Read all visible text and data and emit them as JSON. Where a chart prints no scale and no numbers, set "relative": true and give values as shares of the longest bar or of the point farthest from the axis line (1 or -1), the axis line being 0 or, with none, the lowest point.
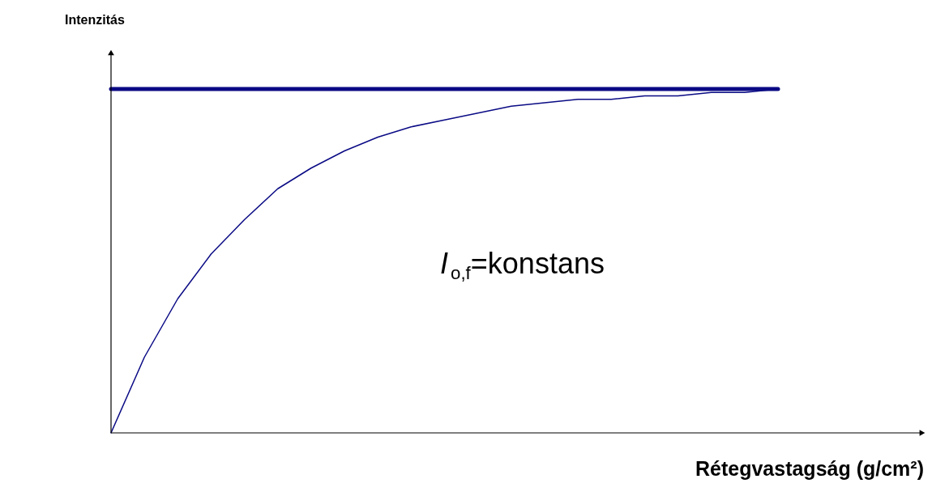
{
  "chart_data": {
    "type": "line",
    "relative": true,
    "marker": "none",
    "line_style": "solid",
    "ylabel": "Intenzitás",
    "xlabel": "Rétegvastagság (g/cm²)",
    "annotations": [
      "I$_{o,f}$=konstans"
    ],
    "categories": [
      null,
      null,
      null,
      null,
      null,
      null,
      null,
      null,
      null,
      null,
      null,
      null,
      null,
      null,
      null,
      null,
      null,
      null,
      null,
      null,
      null
    ],
    "series": [
      {
        "color": "#0a0a85",
        "values": [
          1,
          1,
          1,
          1,
          1,
          1,
          1,
          1,
          1,
          1,
          1,
          1,
          1,
          1,
          1,
          1,
          1,
          1,
          1,
          1,
          1
        ]
      },
      {
        "color": "#0a0a85",
        "values": [
          0,
          0.22,
          0.39,
          0.52,
          0.62,
          0.71,
          0.77,
          0.82,
          0.86,
          0.89,
          0.91,
          0.93,
          0.95,
          0.96,
          0.97,
          0.97,
          0.98,
          0.98,
          0.99,
          0.99,
          1
        ]
      }
    ]
  }
}
